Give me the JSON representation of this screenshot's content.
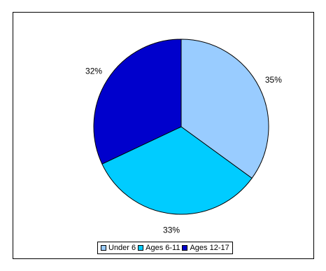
{
  "chart_data": {
    "type": "pie",
    "title": "",
    "slices": [
      {
        "label": "Under 6",
        "value": 35,
        "display": "35%",
        "color": "#99CCFF"
      },
      {
        "label": "Ages 6-11",
        "value": 33,
        "display": "33%",
        "color": "#00CCFF"
      },
      {
        "label": "Ages 12-17",
        "value": 32,
        "display": "32%",
        "color": "#0000CC"
      }
    ],
    "start_angle_deg": 0,
    "direction": "clockwise",
    "legend_position": "bottom",
    "outline_color": "#000000"
  }
}
